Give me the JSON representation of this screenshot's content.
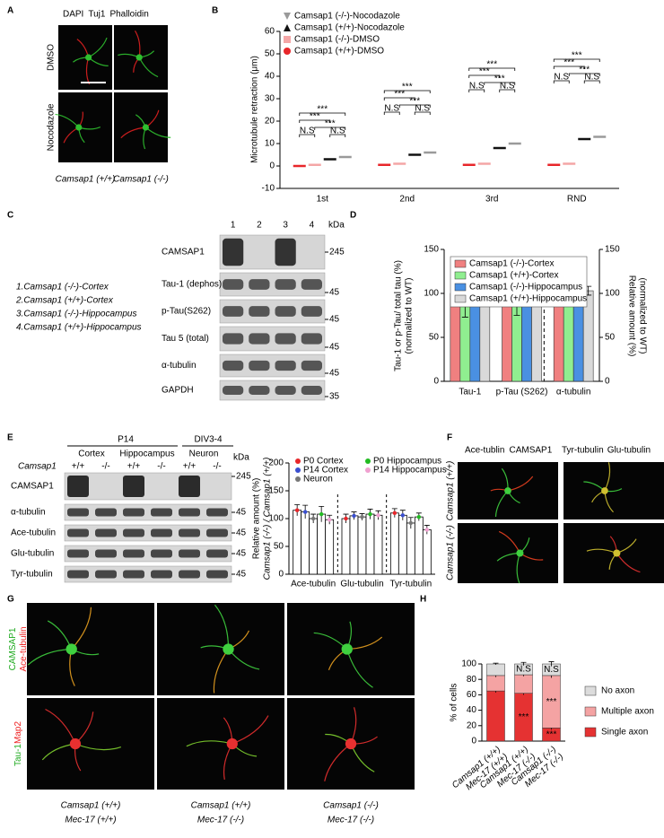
{
  "figure": {
    "panels": [
      "A",
      "B",
      "C",
      "D",
      "E",
      "F",
      "G",
      "H"
    ],
    "A": {
      "stains": [
        {
          "text": "DAPI",
          "color": "#2a2aff"
        },
        {
          "text": "Tuj1",
          "color": "#1faa1f"
        },
        {
          "text": "Phalloidin",
          "color": "#ee2020"
        }
      ],
      "rows": [
        "DMSO",
        "Nocodazole"
      ],
      "columns": [
        "Camsap1 (+/+)",
        "Camsap1 (-/-)"
      ]
    },
    "C": {
      "lanes": [
        "1",
        "2",
        "3",
        "4"
      ],
      "unit": "kDa",
      "rows": [
        "CAMSAP1",
        "Tau-1 (dephos)",
        "p-Tau(S262)",
        "Tau 5 (total)",
        "α-tubulin",
        "GAPDH"
      ],
      "markers": [
        "245",
        "45",
        "45",
        "45",
        "45",
        "35"
      ],
      "samples": [
        "1.Camsap1 (-/-)-Cortex",
        "2.Camsap1 (+/+)-Cortex",
        "3.Camsap1 (-/-)-Hippocampus",
        "4.Camsap1 (+/+)-Hippocampus"
      ]
    },
    "E": {
      "groups": [
        "P14",
        "DIV3-4"
      ],
      "tissues": [
        "Cortex",
        "Hippocampus",
        "Neuron"
      ],
      "genotype_label": "Camsap1",
      "genotypes": [
        "+/+",
        "-/-",
        "+/+",
        "-/-",
        "+/+",
        "-/-"
      ],
      "unit": "kDa",
      "rows": [
        "CAMSAP1",
        "α-tubulin",
        "Ace-tubulin",
        "Glu-tubulin",
        "Tyr-tubulin"
      ],
      "markers": [
        "245",
        "45",
        "45",
        "45",
        "45"
      ]
    },
    "F": {
      "stains": [
        {
          "text": "Ace-tublin",
          "color": "#1faa1f"
        },
        {
          "text": "CAMSAP1",
          "color": "#ee2020"
        },
        {
          "text": "Tyr-tubulin",
          "color": "#1faa1f"
        },
        {
          "text": "Glu-tubulin",
          "color": "#ee2020"
        }
      ],
      "rows": [
        "Camsap1 (+/+)",
        "Camsap1 (-/-)"
      ]
    },
    "G": {
      "rows": [
        [
          [
            {
              "text": "CAMSAP1",
              "color": "#1faa1f"
            }
          ],
          [
            {
              "text": "Ace-tubulin",
              "color": "#ee2020"
            }
          ]
        ],
        [
          [
            {
              "text": "Tau-1",
              "color": "#1faa1f"
            },
            {
              "text": "Map2",
              "color": "#ee2020"
            }
          ]
        ]
      ],
      "columns": [
        [
          "Camsap1 (+/+)",
          "Mec-17 (+/+)"
        ],
        [
          "Camsap1 (+/+)",
          "Mec-17 (-/-)"
        ],
        [
          "Camsap1 (-/-)",
          "Mec-17 (-/-)"
        ]
      ]
    }
  },
  "chart_data": [
    {
      "type": "dot",
      "ylabel": "Microtubule retraction (μm)",
      "categories": [
        "1st",
        "2nd",
        "3rd",
        "RND"
      ],
      "series": [
        {
          "name": "Camsap1 (-/-)-Nocodazole",
          "color": "#9a9a9a",
          "marker": "triangle-down",
          "values": [
            4,
            6,
            10,
            13
          ]
        },
        {
          "name": "Camsap1 (+/+)-Nocodazole",
          "color": "#111111",
          "marker": "triangle-up",
          "values": [
            3,
            5,
            8,
            12
          ]
        },
        {
          "name": "Camsap1 (-/-)-DMSO",
          "color": "#f4a6a6",
          "marker": "square",
          "values": [
            0.5,
            1,
            1,
            1
          ]
        },
        {
          "name": "Camsap1 (+/+)-DMSO",
          "color": "#e8262a",
          "marker": "circle",
          "values": [
            0,
            0.5,
            0.5,
            0.5
          ]
        }
      ],
      "significance": [
        [
          "N.S",
          "N.S",
          "***",
          "***",
          "***"
        ],
        [
          "N.S",
          "N.S",
          "***",
          "***",
          "***"
        ],
        [
          "N.S",
          "N.S",
          "***",
          "***",
          "***"
        ],
        [
          "N.S",
          "N.S",
          "***",
          "***",
          "***"
        ]
      ],
      "ylim": [
        -10,
        60
      ],
      "yticks": [
        -10,
        0,
        10,
        20,
        30,
        40,
        50,
        60
      ]
    },
    {
      "type": "bar",
      "ylabel": [
        "Tau-1 or p-Tau/ total tau (%)",
        "(normalized to WT)"
      ],
      "y2label": [
        "Relative amount (%)",
        "(normalized to WT)"
      ],
      "categories": [
        "Tau-1",
        "p-Tau (S262)",
        "α-tubulin"
      ],
      "series": [
        {
          "name": "Camsap1 (-/-)-Cortex",
          "color": "#f08080",
          "values": [
            100,
            100,
            100
          ],
          "errors": [
            0,
            0,
            0
          ]
        },
        {
          "name": "Camsap1 (+/+)-Cortex",
          "color": "#90ee90",
          "values": [
            85,
            85,
            90
          ],
          "errors": [
            12,
            10,
            4
          ]
        },
        {
          "name": "Camsap1 (-/-)-Hippocampus",
          "color": "#4a90e2",
          "values": [
            100,
            100,
            100
          ],
          "errors": [
            4,
            5,
            2
          ]
        },
        {
          "name": "Camsap1 (+/+)-Hippocampus",
          "color": "#d9d9d9",
          "values": [
            103,
            104,
            103
          ],
          "errors": [
            8,
            10,
            5
          ]
        }
      ],
      "ylim": [
        0,
        150
      ],
      "yticks": [
        0,
        50,
        100,
        150
      ],
      "y2lim": [
        0,
        150
      ],
      "y2ticks": [
        0,
        50,
        100,
        150
      ]
    },
    {
      "type": "bar",
      "ylabel": [
        "Relative amount (%)",
        "Camsap1 (-/-) / Camsap1 (+/+)"
      ],
      "categories": [
        "Ace-tubulin",
        "Glu-tubulin",
        "Tyr-tubulin"
      ],
      "series": [
        {
          "name": "P0 Cortex",
          "color": "#e8262a",
          "values": [
            115,
            100,
            110
          ],
          "errors": [
            10,
            8,
            8
          ]
        },
        {
          "name": "P14 Cortex",
          "color": "#3a4fd0",
          "values": [
            112,
            105,
            106
          ],
          "errors": [
            12,
            7,
            9
          ]
        },
        {
          "name": "Neuron",
          "color": "#777777",
          "values": [
            100,
            103,
            92
          ],
          "errors": [
            8,
            6,
            10
          ]
        },
        {
          "name": "P0 Hippocampus",
          "color": "#22bb22",
          "values": [
            108,
            108,
            103
          ],
          "errors": [
            14,
            9,
            7
          ]
        },
        {
          "name": "P14 Hippocampus",
          "color": "#f0a0d0",
          "values": [
            98,
            106,
            80
          ],
          "errors": [
            8,
            8,
            8
          ]
        }
      ],
      "ylim": [
        0,
        200
      ],
      "yticks": [
        0,
        50,
        100,
        150,
        200
      ]
    },
    {
      "type": "stacked_bar",
      "ylabel": "% of cells",
      "categories": [
        [
          "Camsap1 (+/+)",
          "Mec-17 (+/+)"
        ],
        [
          "Camsap1 (+/+)",
          "Mec-17 (-/-)"
        ],
        [
          "Camsap1 (-/-)",
          "Mec-17 (-/-)"
        ]
      ],
      "series": [
        {
          "name": "Single axon",
          "color": "#e53232",
          "values": [
            65,
            62,
            17
          ],
          "errors": [
            2,
            2,
            2
          ]
        },
        {
          "name": "Multiple axon",
          "color": "#f4a3a3",
          "values": [
            20,
            24,
            68
          ],
          "errors": [
            2,
            2,
            3
          ]
        },
        {
          "name": "No axon",
          "color": "#dcdcdc",
          "values": [
            15,
            14,
            15
          ],
          "errors": [
            1,
            2,
            3
          ]
        }
      ],
      "annotations": [
        null,
        [
          "***",
          null,
          "N.S"
        ],
        [
          "***",
          "***",
          "N.S"
        ]
      ],
      "ylim": [
        0,
        100
      ],
      "yticks": [
        0,
        20,
        40,
        60,
        80,
        100
      ]
    }
  ]
}
